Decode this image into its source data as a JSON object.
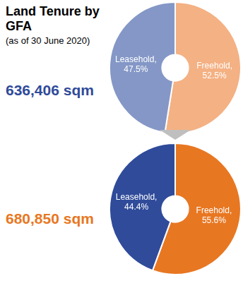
{
  "chart_data": [
    {
      "type": "doughnut",
      "title": "Land Tenure by GFA",
      "subtitle": "(as of 30 June 2020)",
      "annotation": "636,406 sqm",
      "categories": [
        "Freehold",
        "Leasehold"
      ],
      "values": [
        52.5,
        47.5
      ],
      "value_labels": [
        "Freehold,\n52.5%",
        "Leasehold,\n47.5%"
      ],
      "colors": [
        "#f4b183",
        "#8497c6"
      ],
      "data_labels": true
    },
    {
      "type": "doughnut",
      "annotation": "680,850 sqm",
      "categories": [
        "Freehold",
        "Leasehold"
      ],
      "values": [
        55.6,
        44.4
      ],
      "value_labels": [
        "Freehold,\n55.6%",
        "Leasehold,\n44.4%"
      ],
      "colors": [
        "#e87722",
        "#2f4b9a"
      ],
      "data_labels": true
    }
  ]
}
